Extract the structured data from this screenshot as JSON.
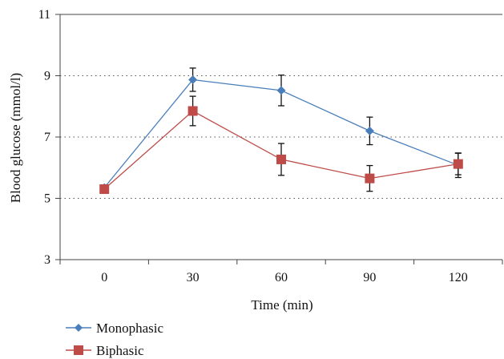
{
  "chart_data": {
    "type": "line",
    "xlabel": "Time (min)",
    "ylabel": "Blood glucose (mmol/l)",
    "categories": [
      "0",
      "30",
      "60",
      "90",
      "120"
    ],
    "ylim": [
      3,
      11
    ],
    "yticks": [
      "3",
      "5",
      "7",
      "9",
      "11"
    ],
    "grid": "horizontal dotted",
    "legend_position": "bottom-left",
    "series": [
      {
        "name": "Monophasic",
        "values": [
          5.35,
          8.87,
          8.52,
          7.2,
          6.08
        ],
        "errors": [
          0.0,
          0.38,
          0.5,
          0.45,
          0.4
        ],
        "color": "#4a7ebb",
        "marker": "diamond"
      },
      {
        "name": "Biphasic",
        "values": [
          5.3,
          7.85,
          6.27,
          5.65,
          6.12
        ],
        "errors": [
          0.0,
          0.48,
          0.52,
          0.42,
          0.35
        ],
        "color": "#be4b48",
        "marker": "square"
      }
    ]
  }
}
